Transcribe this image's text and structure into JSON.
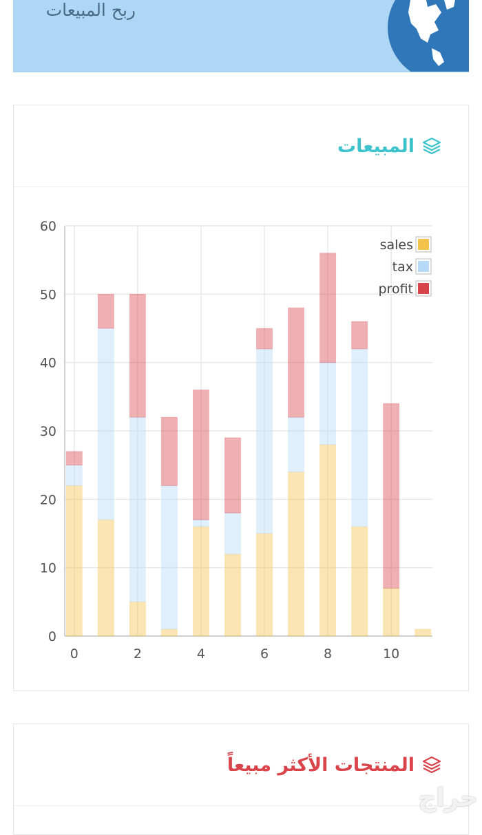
{
  "banner": {
    "title": "ربح المبيعات"
  },
  "sales_card": {
    "title": "المبيعات"
  },
  "top_card": {
    "title": "المنتجات الأكثر مبيعاً"
  },
  "watermark": "حراج",
  "colors": {
    "sales": "#f3c24b",
    "tax": "#b6d9f7",
    "profit": "#d9434a"
  },
  "chart_data": {
    "type": "bar",
    "stacked": true,
    "x": [
      0,
      1,
      2,
      3,
      4,
      5,
      6,
      7,
      8,
      9,
      10,
      11
    ],
    "x_ticks": [
      "0",
      "2",
      "4",
      "6",
      "8",
      "10"
    ],
    "y_ticks": [
      "0",
      "10",
      "20",
      "30",
      "40",
      "50",
      "60"
    ],
    "ylim": [
      0,
      60
    ],
    "xlim": [
      -0.3,
      11.3
    ],
    "legend_position": "top-right",
    "series": [
      {
        "name": "sales",
        "values": [
          22,
          17,
          5,
          1,
          16,
          12,
          15,
          24,
          28,
          16,
          7,
          1
        ]
      },
      {
        "name": "tax",
        "values": [
          3,
          28,
          27,
          21,
          1,
          6,
          27,
          8,
          12,
          26,
          0,
          0
        ]
      },
      {
        "name": "profit",
        "values": [
          2,
          5,
          18,
          10,
          19,
          11,
          3,
          16,
          16,
          4,
          27,
          0
        ]
      }
    ]
  }
}
